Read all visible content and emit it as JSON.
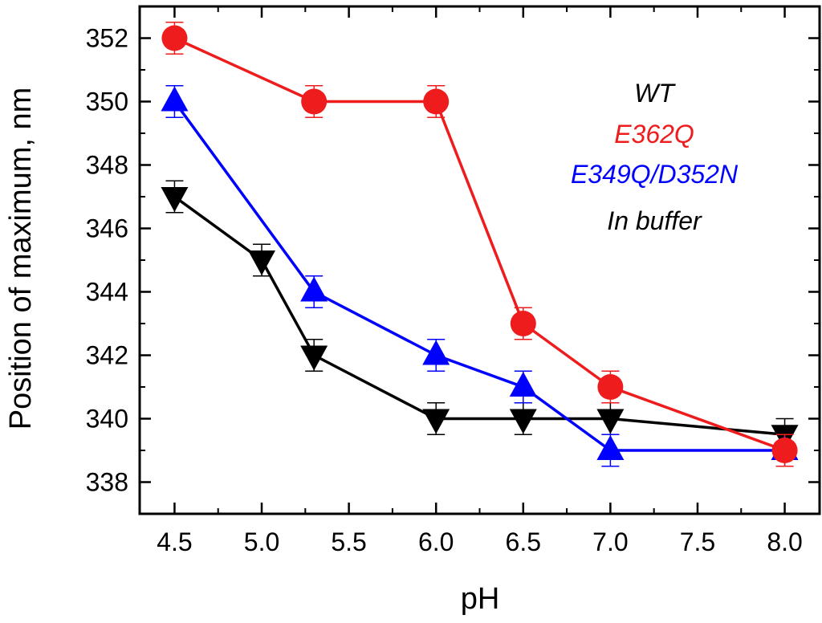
{
  "chart_data": {
    "type": "line",
    "xlabel": "pH",
    "ylabel": "Position of maximum, nm",
    "xlim": [
      4.3,
      8.2
    ],
    "ylim": [
      337,
      353
    ],
    "xticks": [
      "4.5",
      "5.0",
      "5.5",
      "6.0",
      "6.5",
      "7.0",
      "7.5",
      "8.0"
    ],
    "yticks": [
      "338",
      "340",
      "342",
      "344",
      "346",
      "348",
      "350",
      "352"
    ],
    "legend_placement": "top-right",
    "legend_entries": [
      "WT",
      "E362Q",
      "E349Q/D352N",
      "In buffer"
    ],
    "series": [
      {
        "name": "E362Q",
        "color": "#ee1c1c",
        "marker": "circle",
        "x": [
          4.5,
          5.3,
          6.0,
          6.5,
          7.0,
          8.0
        ],
        "y": [
          352,
          350,
          350,
          343,
          341,
          339
        ],
        "error": [
          0.5,
          0.5,
          0.5,
          0.5,
          0.5,
          0.5
        ]
      },
      {
        "name": "E349Q/D352N",
        "color": "#0000ff",
        "marker": "triangle-up",
        "x": [
          4.5,
          5.3,
          6.0,
          6.5,
          7.0,
          8.0
        ],
        "y": [
          350,
          344,
          342,
          341,
          339,
          339
        ],
        "error": [
          0.5,
          0.5,
          0.5,
          0.5,
          0.5,
          0.5
        ]
      },
      {
        "name": "In buffer",
        "color": "#000000",
        "marker": "triangle-down",
        "x": [
          4.5,
          5.0,
          5.3,
          6.0,
          6.5,
          7.0,
          8.0
        ],
        "y": [
          347,
          345,
          342,
          340,
          340,
          340,
          339.5
        ],
        "error": [
          0.5,
          0.5,
          0.5,
          0.5,
          0.5,
          0.5,
          0.5
        ]
      }
    ]
  },
  "legend_colors": {
    "WT": "#000000",
    "E362Q": "#ee1c1c",
    "E349Q/D352N": "#0000ff",
    "In buffer": "#000000"
  }
}
